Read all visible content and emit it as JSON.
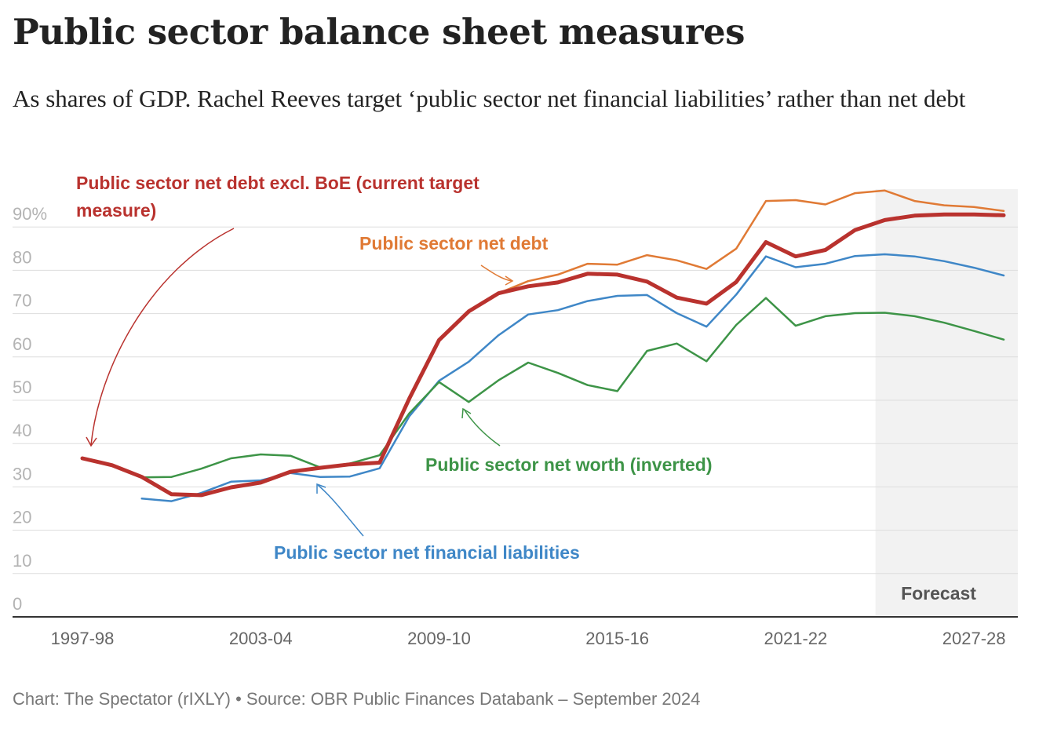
{
  "title": "Public sector balance sheet measures",
  "subtitle": "As shares of GDP. Rachel Reeves target ‘public sector net financial liabilities’ rather than net debt",
  "footer": "Chart: The Spectator (rIXLY) • Source: OBR Public Finances Databank – September 2024",
  "chart_data": {
    "type": "line",
    "x": [
      "1997-98",
      "1998-99",
      "1999-00",
      "2000-01",
      "2001-02",
      "2002-03",
      "2003-04",
      "2004-05",
      "2005-06",
      "2006-07",
      "2007-08",
      "2008-09",
      "2009-10",
      "2010-11",
      "2011-12",
      "2012-13",
      "2013-14",
      "2014-15",
      "2015-16",
      "2016-17",
      "2017-18",
      "2018-19",
      "2019-20",
      "2020-21",
      "2021-22",
      "2022-23",
      "2023-24",
      "2024-25",
      "2025-26",
      "2026-27",
      "2027-28",
      "2028-29"
    ],
    "x_tick_labels": [
      "1997-98",
      "2003-04",
      "2009-10",
      "2015-16",
      "2021-22",
      "2027-28"
    ],
    "y_ticks": [
      0,
      10,
      20,
      30,
      40,
      50,
      60,
      70,
      80,
      90
    ],
    "y_tick_labels": [
      "0",
      "10",
      "20",
      "30",
      "40",
      "50",
      "60",
      "70",
      "80",
      "90%"
    ],
    "ylim": [
      0,
      99
    ],
    "grid": true,
    "forecast_from": "2024-25",
    "forecast_label": "Forecast",
    "series": [
      {
        "name": "Public sector net debt",
        "color": "#e07a35",
        "label": "Public sector net debt",
        "values": [
          36.6,
          35.0,
          32.3,
          28.3,
          28.1,
          29.9,
          31.0,
          33.5,
          34.4,
          35.2,
          35.6,
          50.4,
          63.9,
          70.5,
          74.7,
          77.5,
          79.0,
          81.5,
          81.3,
          83.5,
          82.3,
          80.3,
          85.0,
          96.0,
          96.2,
          95.2,
          97.8,
          98.4,
          96.0,
          95.0,
          94.6,
          93.7
        ]
      },
      {
        "name": "Public sector net debt excl. BoE (current target measure)",
        "color": "#b9322e",
        "label": "Public sector net debt excl. BoE (current target measure)",
        "values": [
          36.6,
          35.0,
          32.3,
          28.3,
          28.1,
          29.9,
          31.0,
          33.5,
          34.4,
          35.2,
          35.6,
          50.4,
          63.9,
          70.5,
          74.7,
          76.3,
          77.2,
          79.2,
          79.0,
          77.4,
          73.7,
          72.3,
          77.3,
          86.5,
          83.2,
          84.7,
          89.3,
          91.6,
          92.6,
          92.9,
          92.9,
          92.7
        ]
      },
      {
        "name": "Public sector net financial liabilities",
        "color": "#3f87c7",
        "label": "Public sector net financial liabilities",
        "values": [
          null,
          null,
          27.3,
          26.7,
          28.6,
          31.2,
          31.5,
          33.2,
          32.3,
          32.4,
          34.3,
          46.3,
          54.5,
          58.9,
          65.0,
          69.8,
          70.8,
          72.9,
          74.1,
          74.3,
          70.1,
          67.0,
          74.4,
          83.2,
          80.7,
          81.5,
          83.3,
          83.7,
          83.2,
          82.1,
          80.6,
          78.8
        ]
      },
      {
        "name": "Public sector net worth (inverted)",
        "color": "#3d9447",
        "label": "Public sector net worth (inverted)",
        "values": [
          null,
          null,
          32.2,
          32.3,
          34.2,
          36.6,
          37.5,
          37.2,
          34.5,
          35.4,
          37.3,
          47.0,
          54.2,
          49.6,
          54.6,
          58.7,
          56.3,
          53.5,
          52.1,
          61.4,
          63.1,
          59.0,
          67.4,
          73.6,
          67.2,
          69.4,
          70.1,
          70.2,
          69.4,
          67.9,
          66.0,
          64.0
        ]
      }
    ]
  }
}
